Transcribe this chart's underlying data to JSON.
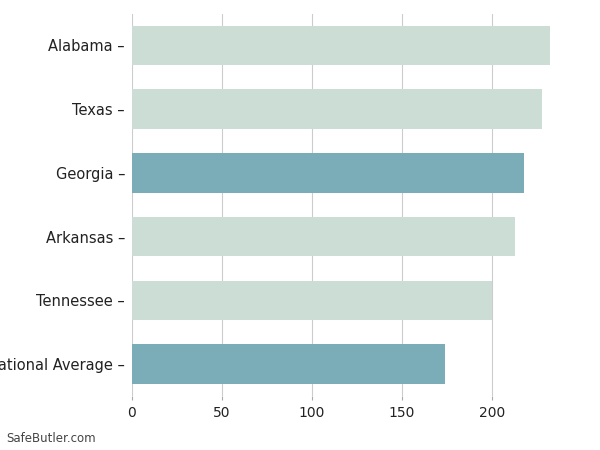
{
  "categories": [
    "Alabama",
    "Texas",
    "Georgia",
    "Arkansas",
    "Tennessee",
    "National Average"
  ],
  "values": [
    232,
    228,
    218,
    213,
    200,
    174
  ],
  "bar_colors": [
    "#ccddd5",
    "#ccddd5",
    "#7aadb8",
    "#ccddd5",
    "#ccddd5",
    "#7aadb8"
  ],
  "xlim": [
    0,
    250
  ],
  "xticks": [
    0,
    50,
    100,
    150,
    200
  ],
  "background_color": "#ffffff",
  "grid_color": "#cccccc",
  "text_color": "#222222",
  "label_fontsize": 10.5,
  "tick_fontsize": 10,
  "footer_text": "SafeButler.com",
  "bar_height": 0.62
}
